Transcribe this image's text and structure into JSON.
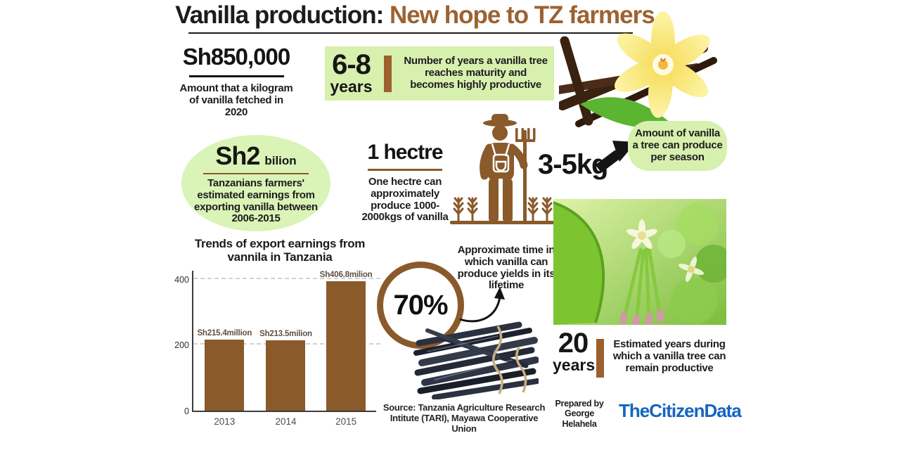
{
  "title": {
    "prefix": "Vanilla production: ",
    "highlight": "New hope to TZ farmers"
  },
  "price": {
    "value": "Sh850,000",
    "caption": "Amount that a kilogram of vanilla fetched in 2020"
  },
  "maturity": {
    "value": "6-8",
    "unit": "years",
    "caption": "Number of years a vanilla tree reaches maturity and becomes highly productive"
  },
  "earnings": {
    "value": "Sh2",
    "unit": "bilion",
    "caption": "Tanzanians farmers' estimated earnings from exporting vanilla between 2006-2015"
  },
  "hectare": {
    "value": "1 hectre",
    "caption": "One hectre can approximately produce 1000- 2000kgs of vanilla"
  },
  "per_season": {
    "value": "3-5kg",
    "caption": "Amount of vanilla a tree can produce per season"
  },
  "yield": {
    "value": "70%",
    "caption": "Approximate time in which vanilla can produce yields in its lifetime"
  },
  "lifespan": {
    "value": "20",
    "unit": "years",
    "caption": "Estimated years during which a vanilla tree can remain productive"
  },
  "chart_data": {
    "type": "bar",
    "title": "Trends of export earnings from vannila in Tanzania",
    "categories": [
      "2013",
      "2014",
      "2015"
    ],
    "values": [
      215.4,
      213.5,
      406.8
    ],
    "bar_labels": [
      "Sh215.4million",
      "Sh213.5milion",
      "Sh406.8milion"
    ],
    "xlabel": "",
    "ylabel": "",
    "yticks": [
      0,
      200,
      400
    ],
    "ylim": [
      0,
      425
    ],
    "grid": "horizontal-dashed",
    "legend": "none",
    "bar_color": "#8a5a2b"
  },
  "footer": {
    "source": "Source: Tanzania Agriculture Research Intitute (TARI), Mayawa Cooperative Union",
    "prepared_label": "Prepared by",
    "author": "George Helahela",
    "brand": "TheCitizenData"
  },
  "colors": {
    "accent_brown": "#9c6231",
    "icon_brown": "#8a5a2b",
    "light_green": "#d7f0ae",
    "brand_blue": "#1565c0"
  }
}
